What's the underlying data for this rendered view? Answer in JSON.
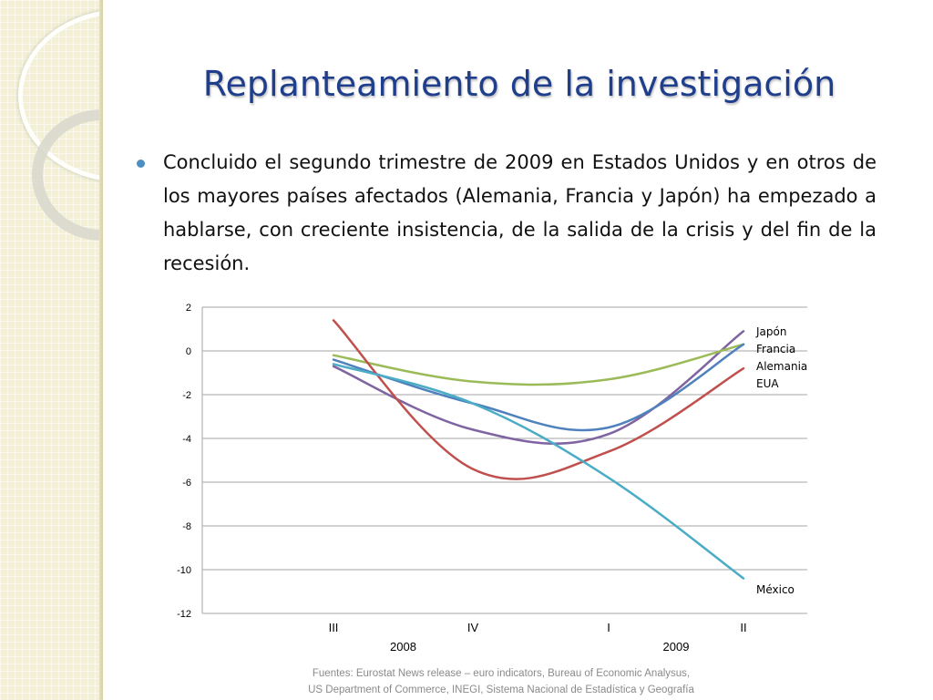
{
  "slide": {
    "title": "Replanteamiento de la investigación",
    "bullet": "Concluido el segundo trimestre de 2009 en Estados Unidos y en otros de los mayores países afectados (Alemania, Francia y Japón) ha empezado a hablarse, con creciente insistencia, de la salida de la crisis y del fin de la recesión.",
    "source_line1": "Fuentes: Eurostat News release – euro indicators, Bureau of Economic Analysus,",
    "source_line2": "US Department of Commerce,  INEGI, Sistema Nacional de Estadística y Geografía"
  },
  "colors": {
    "title": "#1f3e8c",
    "bullet": "#4e8fc1",
    "grid": "#a6a6a6"
  },
  "chart_data": {
    "type": "line",
    "categories": [
      "III",
      "IV",
      "I",
      "II"
    ],
    "year_labels": [
      {
        "label": "2008",
        "center": 0.5
      },
      {
        "label": "2009",
        "center": 2.5
      }
    ],
    "ylim": [
      -12,
      2
    ],
    "yticks": [
      2,
      0,
      -2,
      -4,
      -6,
      -8,
      -10,
      -12
    ],
    "grid": true,
    "series": [
      {
        "name": "Japón",
        "color": "#8064a2",
        "values": [
          -0.7,
          -3.6,
          -3.8,
          0.9
        ]
      },
      {
        "name": "Francia",
        "color": "#9bbb59",
        "values": [
          -0.2,
          -1.4,
          -1.3,
          0.3
        ]
      },
      {
        "name": "Alemania",
        "color": "#4f81bd",
        "values": [
          -0.4,
          -2.4,
          -3.5,
          0.3
        ]
      },
      {
        "name": "EUA",
        "color": "#c0504d",
        "values": [
          1.4,
          -5.4,
          -4.6,
          -0.8
        ]
      },
      {
        "name": "México",
        "color": "#4bacc6",
        "values": [
          -0.6,
          -2.4,
          -5.8,
          -10.4
        ]
      }
    ]
  }
}
